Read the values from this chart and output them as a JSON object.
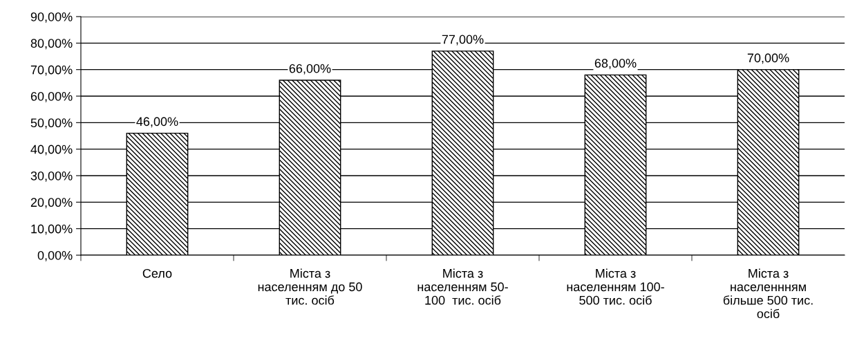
{
  "chart_data": {
    "type": "bar",
    "categories": [
      "Село",
      "Міста з\nнаселенням до 50\nтис. осіб",
      "Міста з\nнаселенням 50-\n100  тис. осіб",
      "Міста з\nнаселенням 100-\n500 тис. осіб",
      "Міста з\nнаселеннням\nбільше 500 тис.\nосіб"
    ],
    "values": [
      46,
      66,
      77,
      68,
      70
    ],
    "value_labels": [
      "46,00%",
      "66,00%",
      "77,00%",
      "68,00%",
      "70,00%"
    ],
    "ylim": [
      0,
      90
    ],
    "yticks": [
      {
        "value": 0,
        "label": "0,00%"
      },
      {
        "value": 10,
        "label": "10,00%"
      },
      {
        "value": 20,
        "label": "20,00%"
      },
      {
        "value": 30,
        "label": "30,00%"
      },
      {
        "value": 40,
        "label": "40,00%"
      },
      {
        "value": 50,
        "label": "50,00%"
      },
      {
        "value": 60,
        "label": "60,00%"
      },
      {
        "value": 70,
        "label": "70,00%"
      },
      {
        "value": 80,
        "label": "80,00%"
      },
      {
        "value": 90,
        "label": "90,00%"
      }
    ],
    "grid": "y"
  }
}
